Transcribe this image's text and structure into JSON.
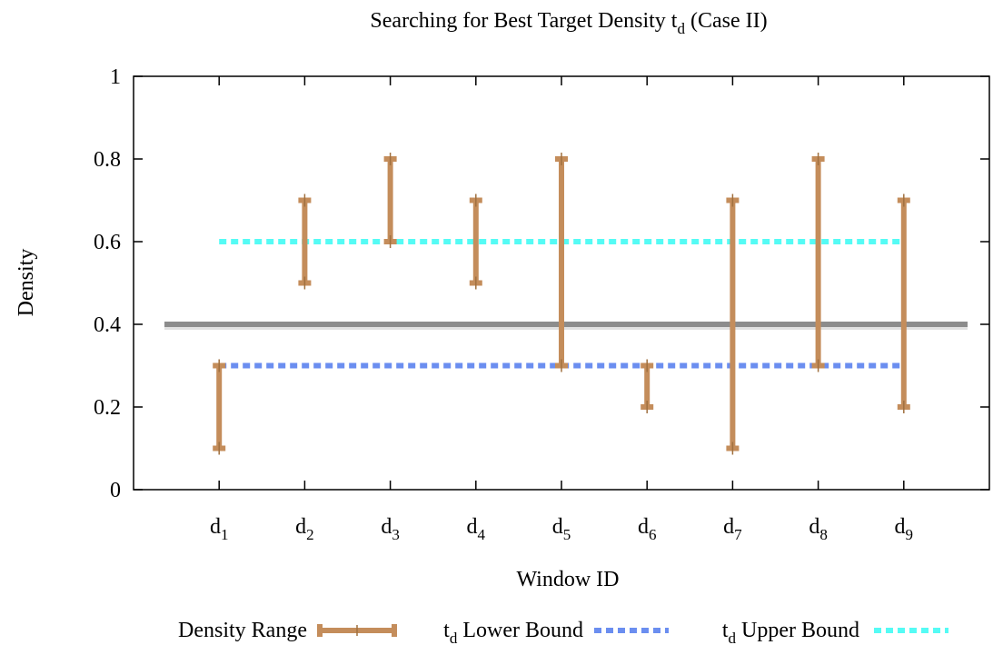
{
  "chart_data": {
    "type": "errorbar",
    "title": "Searching for Best Target Density",
    "title_symbol": "t",
    "title_symbol_sub": "d",
    "title_suffix": "(Case II)",
    "xlabel": "Window ID",
    "ylabel": "Density",
    "ylim": [
      0,
      1
    ],
    "yticks": [
      "0",
      "0.2",
      "0.4",
      "0.6",
      "0.8",
      "1"
    ],
    "ytick_values": [
      0,
      0.2,
      0.4,
      0.6,
      0.8,
      1
    ],
    "categories": [
      {
        "base": "d",
        "sub": "1"
      },
      {
        "base": "d",
        "sub": "2"
      },
      {
        "base": "d",
        "sub": "3"
      },
      {
        "base": "d",
        "sub": "4"
      },
      {
        "base": "d",
        "sub": "5"
      },
      {
        "base": "d",
        "sub": "6"
      },
      {
        "base": "d",
        "sub": "7"
      },
      {
        "base": "d",
        "sub": "8"
      },
      {
        "base": "d",
        "sub": "9"
      }
    ],
    "ranges": [
      [
        0.1,
        0.3
      ],
      [
        0.5,
        0.7
      ],
      [
        0.6,
        0.8
      ],
      [
        0.5,
        0.7
      ],
      [
        0.3,
        0.8
      ],
      [
        0.2,
        0.3
      ],
      [
        0.1,
        0.7
      ],
      [
        0.3,
        0.8
      ],
      [
        0.2,
        0.7
      ]
    ],
    "target_line": 0.4,
    "lower_bound": 0.3,
    "upper_bound": 0.6,
    "legend": [
      {
        "label": "Density Range",
        "prefix": "",
        "sub": ""
      },
      {
        "label": "Lower Bound",
        "prefix": "t",
        "sub": "d"
      },
      {
        "label": "Upper Bound",
        "prefix": "t",
        "sub": "d"
      }
    ],
    "legend_placement": "bottom",
    "colors": {
      "range": "#c48d5b",
      "lower": "#6b8ef0",
      "upper": "#55fbf5",
      "target": "#8c8c8c"
    }
  }
}
